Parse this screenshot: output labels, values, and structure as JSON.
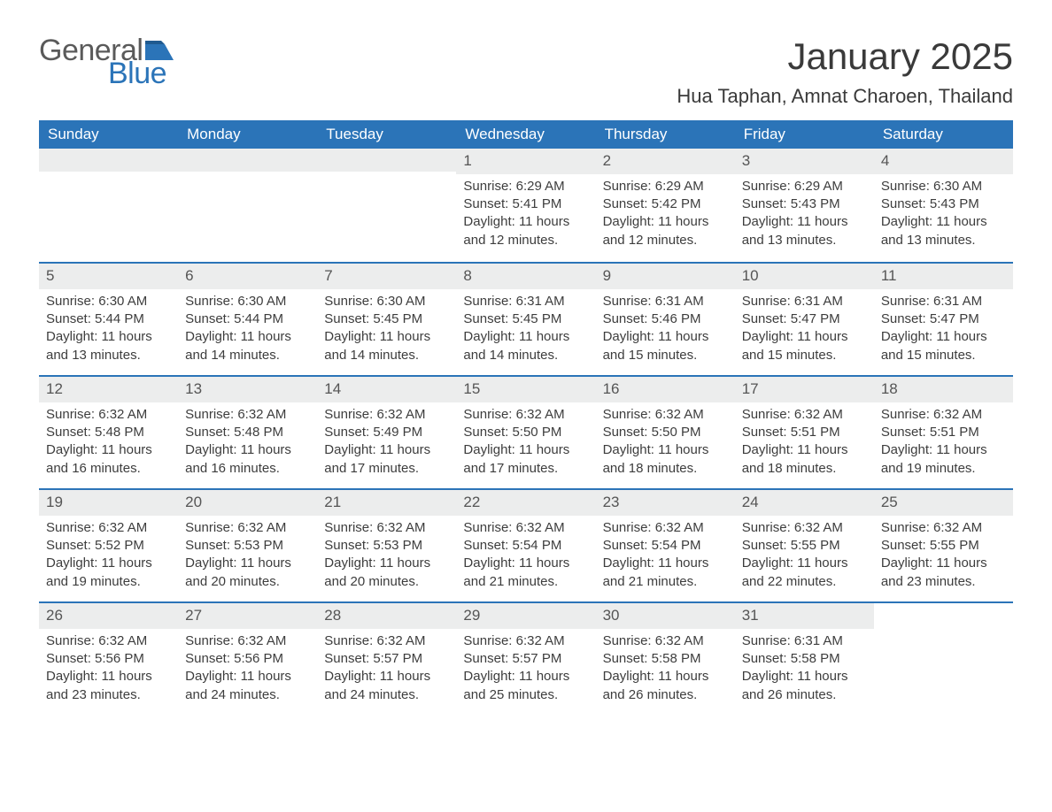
{
  "logo": {
    "general": "General",
    "blue": "Blue"
  },
  "title": "January 2025",
  "location": "Hua Taphan, Amnat Charoen, Thailand",
  "colors": {
    "brand_blue": "#2b74b8",
    "header_text": "#ffffff",
    "daynum_bg": "#eceded",
    "body_text": "#3d3d3d",
    "page_bg": "#ffffff"
  },
  "typography": {
    "title_fontsize": 42,
    "location_fontsize": 22,
    "header_fontsize": 17,
    "cell_fontsize": 15
  },
  "layout": {
    "columns": 7,
    "rows": 5,
    "first_day_column_index": 3
  },
  "day_names": [
    "Sunday",
    "Monday",
    "Tuesday",
    "Wednesday",
    "Thursday",
    "Friday",
    "Saturday"
  ],
  "days": [
    {
      "n": 1,
      "sunrise": "6:29 AM",
      "sunset": "5:41 PM",
      "daylight": "11 hours and 12 minutes."
    },
    {
      "n": 2,
      "sunrise": "6:29 AM",
      "sunset": "5:42 PM",
      "daylight": "11 hours and 12 minutes."
    },
    {
      "n": 3,
      "sunrise": "6:29 AM",
      "sunset": "5:43 PM",
      "daylight": "11 hours and 13 minutes."
    },
    {
      "n": 4,
      "sunrise": "6:30 AM",
      "sunset": "5:43 PM",
      "daylight": "11 hours and 13 minutes."
    },
    {
      "n": 5,
      "sunrise": "6:30 AM",
      "sunset": "5:44 PM",
      "daylight": "11 hours and 13 minutes."
    },
    {
      "n": 6,
      "sunrise": "6:30 AM",
      "sunset": "5:44 PM",
      "daylight": "11 hours and 14 minutes."
    },
    {
      "n": 7,
      "sunrise": "6:30 AM",
      "sunset": "5:45 PM",
      "daylight": "11 hours and 14 minutes."
    },
    {
      "n": 8,
      "sunrise": "6:31 AM",
      "sunset": "5:45 PM",
      "daylight": "11 hours and 14 minutes."
    },
    {
      "n": 9,
      "sunrise": "6:31 AM",
      "sunset": "5:46 PM",
      "daylight": "11 hours and 15 minutes."
    },
    {
      "n": 10,
      "sunrise": "6:31 AM",
      "sunset": "5:47 PM",
      "daylight": "11 hours and 15 minutes."
    },
    {
      "n": 11,
      "sunrise": "6:31 AM",
      "sunset": "5:47 PM",
      "daylight": "11 hours and 15 minutes."
    },
    {
      "n": 12,
      "sunrise": "6:32 AM",
      "sunset": "5:48 PM",
      "daylight": "11 hours and 16 minutes."
    },
    {
      "n": 13,
      "sunrise": "6:32 AM",
      "sunset": "5:48 PM",
      "daylight": "11 hours and 16 minutes."
    },
    {
      "n": 14,
      "sunrise": "6:32 AM",
      "sunset": "5:49 PM",
      "daylight": "11 hours and 17 minutes."
    },
    {
      "n": 15,
      "sunrise": "6:32 AM",
      "sunset": "5:50 PM",
      "daylight": "11 hours and 17 minutes."
    },
    {
      "n": 16,
      "sunrise": "6:32 AM",
      "sunset": "5:50 PM",
      "daylight": "11 hours and 18 minutes."
    },
    {
      "n": 17,
      "sunrise": "6:32 AM",
      "sunset": "5:51 PM",
      "daylight": "11 hours and 18 minutes."
    },
    {
      "n": 18,
      "sunrise": "6:32 AM",
      "sunset": "5:51 PM",
      "daylight": "11 hours and 19 minutes."
    },
    {
      "n": 19,
      "sunrise": "6:32 AM",
      "sunset": "5:52 PM",
      "daylight": "11 hours and 19 minutes."
    },
    {
      "n": 20,
      "sunrise": "6:32 AM",
      "sunset": "5:53 PM",
      "daylight": "11 hours and 20 minutes."
    },
    {
      "n": 21,
      "sunrise": "6:32 AM",
      "sunset": "5:53 PM",
      "daylight": "11 hours and 20 minutes."
    },
    {
      "n": 22,
      "sunrise": "6:32 AM",
      "sunset": "5:54 PM",
      "daylight": "11 hours and 21 minutes."
    },
    {
      "n": 23,
      "sunrise": "6:32 AM",
      "sunset": "5:54 PM",
      "daylight": "11 hours and 21 minutes."
    },
    {
      "n": 24,
      "sunrise": "6:32 AM",
      "sunset": "5:55 PM",
      "daylight": "11 hours and 22 minutes."
    },
    {
      "n": 25,
      "sunrise": "6:32 AM",
      "sunset": "5:55 PM",
      "daylight": "11 hours and 23 minutes."
    },
    {
      "n": 26,
      "sunrise": "6:32 AM",
      "sunset": "5:56 PM",
      "daylight": "11 hours and 23 minutes."
    },
    {
      "n": 27,
      "sunrise": "6:32 AM",
      "sunset": "5:56 PM",
      "daylight": "11 hours and 24 minutes."
    },
    {
      "n": 28,
      "sunrise": "6:32 AM",
      "sunset": "5:57 PM",
      "daylight": "11 hours and 24 minutes."
    },
    {
      "n": 29,
      "sunrise": "6:32 AM",
      "sunset": "5:57 PM",
      "daylight": "11 hours and 25 minutes."
    },
    {
      "n": 30,
      "sunrise": "6:32 AM",
      "sunset": "5:58 PM",
      "daylight": "11 hours and 26 minutes."
    },
    {
      "n": 31,
      "sunrise": "6:31 AM",
      "sunset": "5:58 PM",
      "daylight": "11 hours and 26 minutes."
    }
  ],
  "labels": {
    "sunrise": "Sunrise:",
    "sunset": "Sunset:",
    "daylight": "Daylight:"
  }
}
